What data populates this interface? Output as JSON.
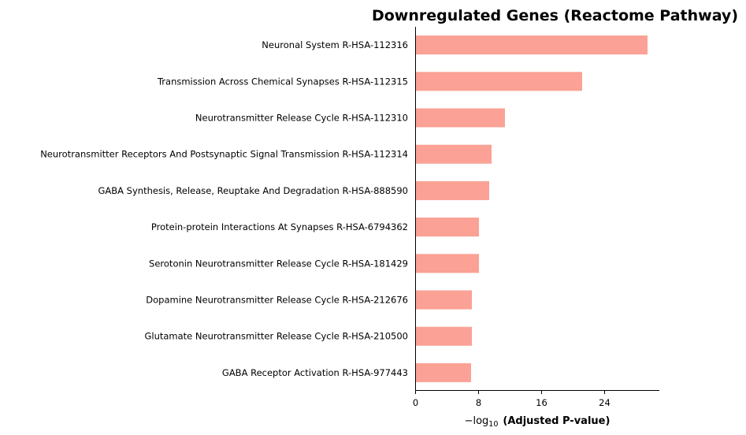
{
  "chart_data": {
    "type": "bar",
    "orientation": "horizontal",
    "title": "Downregulated Genes (Reactome Pathway)",
    "xlabel_prefix": "−log",
    "xlabel_sub": "10",
    "xlabel_main": "(Adjusted P-value)",
    "xlim": [
      0,
      31
    ],
    "xticks": [
      "0",
      "8",
      "16",
      "24"
    ],
    "bar_color": "#fba195",
    "categories": [
      "Neuronal System R-HSA-112316",
      "Transmission Across Chemical Synapses R-HSA-112315",
      "Neurotransmitter Release Cycle R-HSA-112310",
      "Neurotransmitter Receptors And Postsynaptic Signal Transmission R-HSA-112314",
      "GABA Synthesis, Release, Reuptake And Degradation R-HSA-888590",
      "Protein-protein Interactions At Synapses R-HSA-6794362",
      "Serotonin Neurotransmitter Release Cycle R-HSA-181429",
      "Dopamine Neurotransmitter Release Cycle R-HSA-212676",
      "Glutamate Neurotransmitter Release Cycle R-HSA-210500",
      "GABA Receptor Activation R-HSA-977443"
    ],
    "values": [
      29.5,
      21.2,
      11.4,
      9.7,
      9.4,
      8.1,
      8.1,
      7.2,
      7.2,
      7.1
    ]
  }
}
